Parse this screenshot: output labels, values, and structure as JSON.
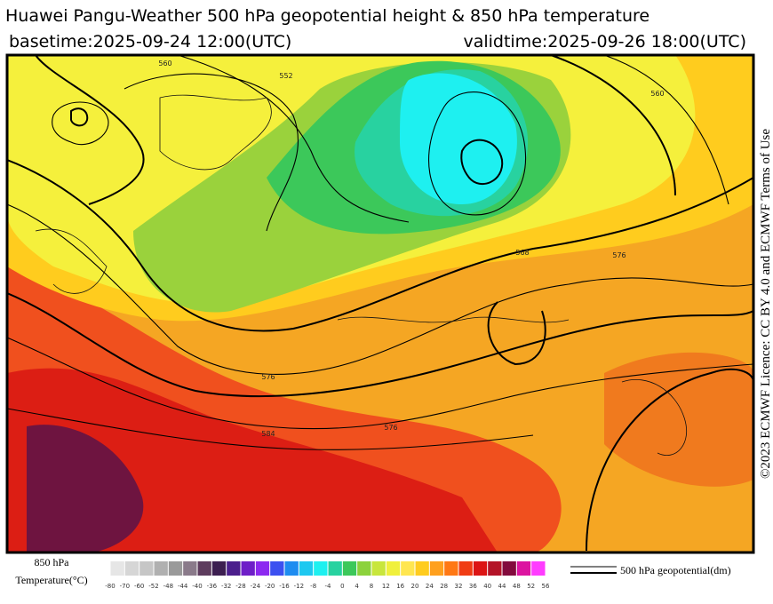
{
  "header": {
    "title": "Huawei Pangu-Weather 500 hPa geopotential height & 850 hPa temperature",
    "basetime": "basetime:2025-09-24 12:00(UTC)",
    "validtime": "validtime:2025-09-26 18:00(UTC)"
  },
  "credit": "©2023 ECMWF Licence: CC BY 4.0 and ECMWF Terms of Use",
  "map": {
    "contour_labels": [
      "560",
      "552",
      "560",
      "576",
      "568",
      "576",
      "584",
      "576"
    ]
  },
  "legend": {
    "temperature_label_1": "850 hPa",
    "temperature_label_2": "Temperature(°C)",
    "ticks": [
      -80,
      -70,
      -60,
      -52,
      -48,
      -44,
      -40,
      -36,
      -32,
      -28,
      -24,
      -20,
      -16,
      -12,
      -8,
      -4,
      0,
      4,
      8,
      12,
      16,
      20,
      24,
      28,
      32,
      36,
      40,
      44,
      48,
      52,
      56
    ],
    "colors": [
      "#e6e6e6",
      "#d6d6d6",
      "#c6c6c6",
      "#b0b0b0",
      "#9a9a9a",
      "#8a7a8a",
      "#5e3c5e",
      "#3c1e50",
      "#4b1e8c",
      "#6e1ec8",
      "#8c28f0",
      "#3c50f0",
      "#1e8cf0",
      "#1ec8f0",
      "#1ef0f0",
      "#28d2a0",
      "#3cc85a",
      "#8cd23c",
      "#c8e63c",
      "#f0f03c",
      "#ffe650",
      "#ffcc1e",
      "#ffa01e",
      "#ff7814",
      "#f03c14",
      "#dc1414",
      "#b41428",
      "#820a3c",
      "#dc14a0",
      "#ff3cff"
    ],
    "contour_label": "500 hPa geopotential(dm)"
  }
}
